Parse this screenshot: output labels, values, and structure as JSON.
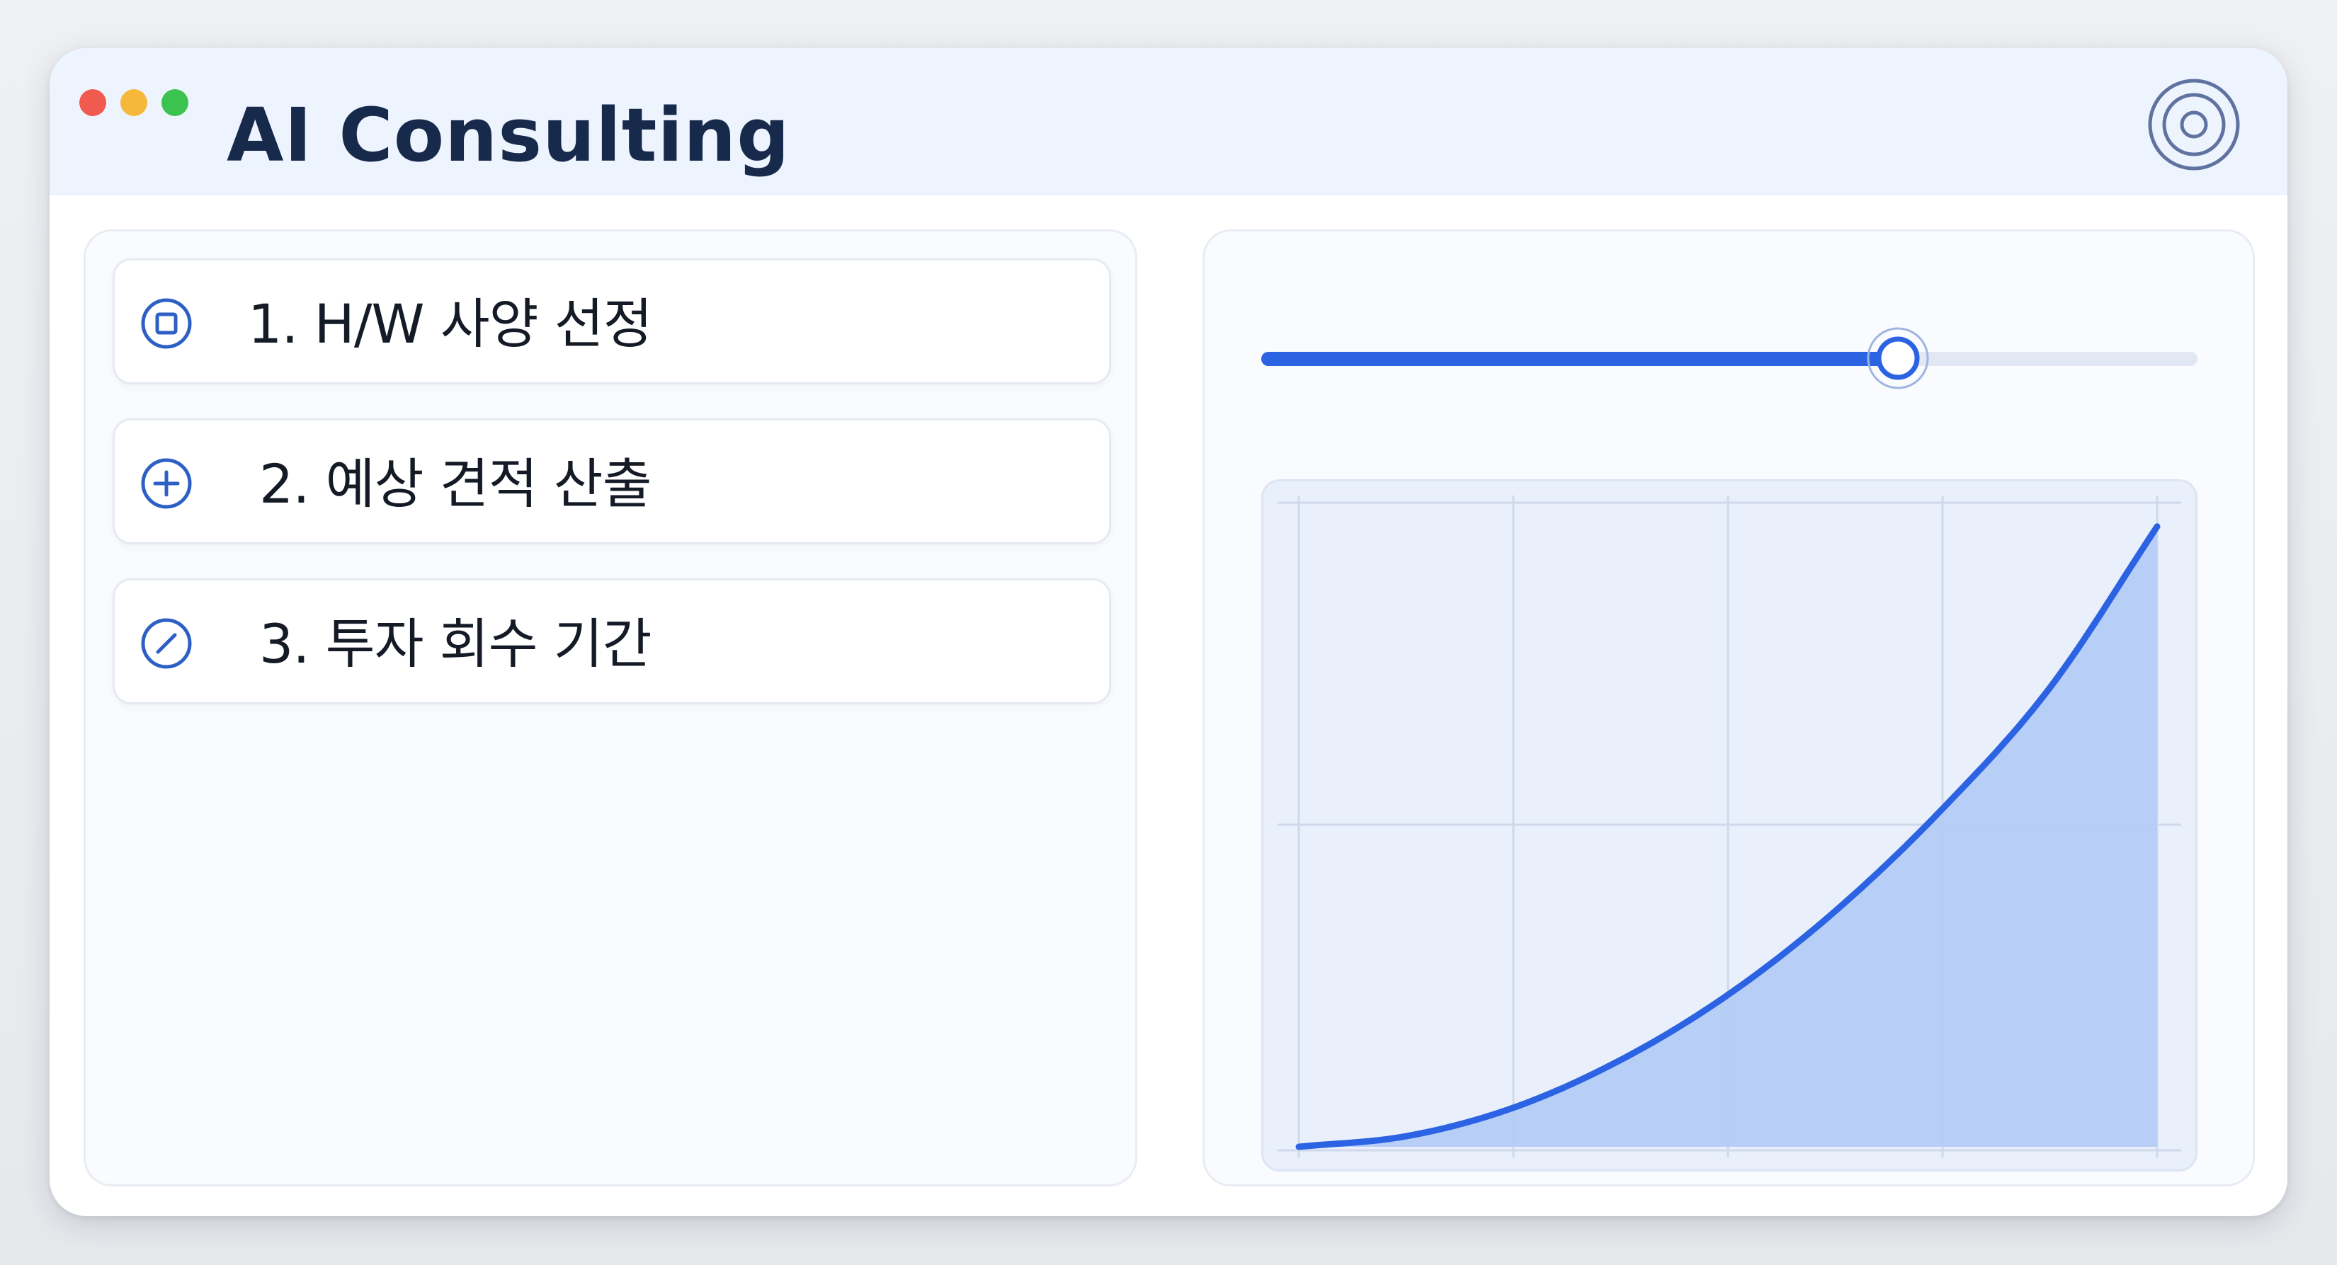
{
  "window": {
    "title": "AI Consulting",
    "controls": [
      {
        "name": "close",
        "color": "#f05a4f"
      },
      {
        "name": "minimize",
        "color": "#f5b83b"
      },
      {
        "name": "maximize",
        "color": "#3cc24f"
      }
    ],
    "settings_icon": "target-icon"
  },
  "menu": {
    "items": [
      {
        "label": "1. H/W 사양 선정",
        "icon": "square-in-circle-icon"
      },
      {
        "label": "2. 예상 견적 산출",
        "icon": "plus-circle-icon"
      },
      {
        "label": "3. 투자 회수 기간",
        "icon": "slash-circle-icon"
      }
    ]
  },
  "slider": {
    "value": 0.68
  },
  "colors": {
    "accent": "#2b63e3",
    "title_text": "#172a4b",
    "area_fill": "#b4cbf7"
  },
  "chart_data": {
    "type": "area",
    "x": [
      0,
      0.125,
      0.25,
      0.375,
      0.5,
      0.625,
      0.75,
      0.875,
      1.0
    ],
    "values": [
      0,
      0.017,
      0.063,
      0.14,
      0.245,
      0.38,
      0.545,
      0.74,
      1.0
    ],
    "xlim": [
      0,
      1
    ],
    "ylim": [
      0,
      1.05
    ],
    "grid": true,
    "title": "",
    "xlabel": "",
    "ylabel": ""
  }
}
